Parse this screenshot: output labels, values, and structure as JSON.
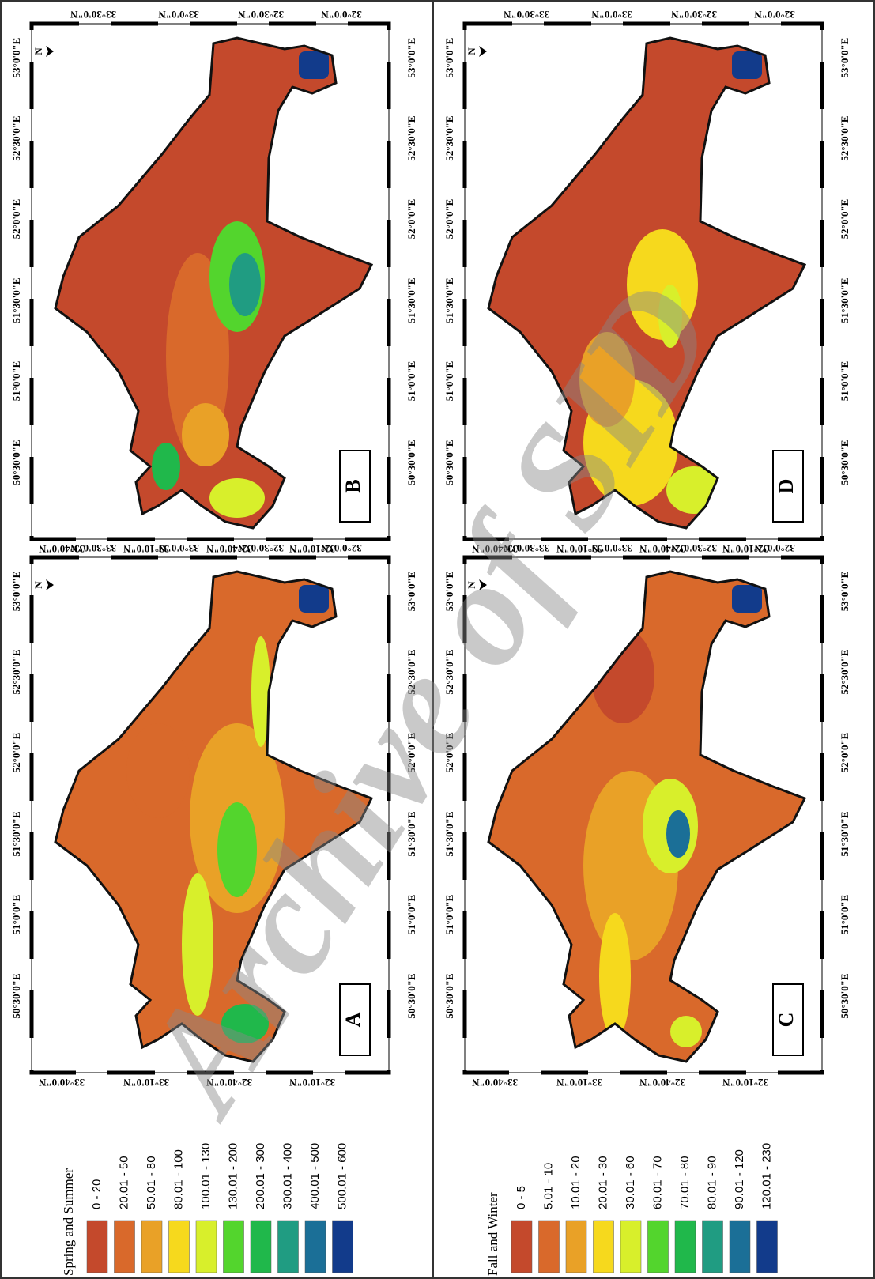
{
  "watermark": "Archive of SID",
  "north_label": "N",
  "panels": [
    {
      "label": "A",
      "legend": 0
    },
    {
      "label": "B",
      "legend": 0
    },
    {
      "label": "C",
      "legend": 1
    },
    {
      "label": "D",
      "legend": 1
    }
  ],
  "longitude_ticks": [
    "50°30'0\"E",
    "51°0'0\"E",
    "51°30'0\"E",
    "52°0'0\"E",
    "52°30'0\"E",
    "53°0'0\"E"
  ],
  "latitude_ticks_top": [
    "32°0'0\"N",
    "32°30'0\"N",
    "33°0'0\"N",
    "33°30'0\"N"
  ],
  "latitude_ticks_bottom": [
    "32°10'0\"N",
    "32°40'0\"N",
    "33°10'0\"N",
    "33°40'0\"N"
  ],
  "legends": [
    {
      "title": "Spring and Summer",
      "items": [
        {
          "label": "0 - 20",
          "color": "#c4492c"
        },
        {
          "label": "20.01 - 50",
          "color": "#d9692b"
        },
        {
          "label": "50.01 - 80",
          "color": "#e9a127"
        },
        {
          "label": "80.01 - 100",
          "color": "#f6d91d"
        },
        {
          "label": "100.01 - 130",
          "color": "#d8ef2b"
        },
        {
          "label": "130.01 - 200",
          "color": "#53d52d"
        },
        {
          "label": "200.01 - 300",
          "color": "#20b84b"
        },
        {
          "label": "300.01 - 400",
          "color": "#209c82"
        },
        {
          "label": "400.01 - 500",
          "color": "#1b6f97"
        },
        {
          "label": "500.01 - 600",
          "color": "#123b8b"
        }
      ]
    },
    {
      "title": "Fall and Winter",
      "items": [
        {
          "label": "0 - 5",
          "color": "#c4492c"
        },
        {
          "label": "5.01 - 10",
          "color": "#d9692b"
        },
        {
          "label": "10.01 - 20",
          "color": "#e9a127"
        },
        {
          "label": "20.01 - 30",
          "color": "#f6d91d"
        },
        {
          "label": "30.01 - 60",
          "color": "#d8ef2b"
        },
        {
          "label": "60.01 - 70",
          "color": "#53d52d"
        },
        {
          "label": "70.01 - 80",
          "color": "#20b84b"
        },
        {
          "label": "80.01 - 90",
          "color": "#209c82"
        },
        {
          "label": "90.01 - 120",
          "color": "#1b6f97"
        },
        {
          "label": "120.01 - 230",
          "color": "#123b8b"
        }
      ]
    }
  ]
}
